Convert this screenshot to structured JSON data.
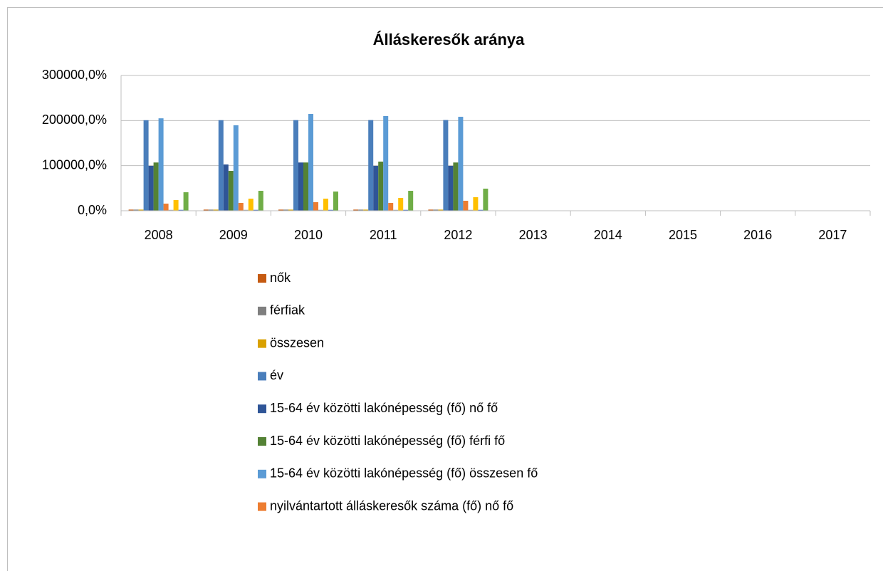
{
  "chart_data": {
    "type": "bar",
    "title": "Álláskeresők aránya",
    "categories": [
      "2008",
      "2009",
      "2010",
      "2011",
      "2012",
      "2013",
      "2014",
      "2015",
      "2016",
      "2017"
    ],
    "ylim": [
      0,
      300000
    ],
    "yticks": [
      {
        "value": 0,
        "label": "0,0%"
      },
      {
        "value": 100000,
        "label": "100000,0%"
      },
      {
        "value": 200000,
        "label": "200000,0%"
      },
      {
        "value": 300000,
        "label": "300000,0%"
      }
    ],
    "grid": true,
    "legend": "bottom",
    "series": [
      {
        "name": "nők",
        "color": "#c55a11",
        "values": [
          2500,
          2500,
          2500,
          2500,
          2500,
          null,
          null,
          null,
          null,
          null
        ]
      },
      {
        "name": "férfiak",
        "color": "#7f7f7f",
        "values": [
          2500,
          2500,
          2500,
          2500,
          2500,
          null,
          null,
          null,
          null,
          null
        ]
      },
      {
        "name": "összesen",
        "color": "#d9a100",
        "values": [
          2500,
          2500,
          2500,
          2500,
          2500,
          null,
          null,
          null,
          null,
          null
        ]
      },
      {
        "name": "év",
        "color": "#4a7ebb",
        "values": [
          200800,
          200900,
          201000,
          201100,
          201200,
          null,
          null,
          null,
          null,
          null
        ]
      },
      {
        "name": "15-64 év közötti lakónépesség (fő) nő fő",
        "color": "#2f5597",
        "values": [
          99500,
          102600,
          107000,
          99500,
          99500,
          null,
          null,
          null,
          null,
          null
        ]
      },
      {
        "name": "15-64 év közötti lakónépesség (fő) férfi fő",
        "color": "#548235",
        "values": [
          107000,
          88400,
          107000,
          109000,
          107000,
          null,
          null,
          null,
          null,
          null
        ]
      },
      {
        "name": "15-64 év közötti lakónépesség (fő) összesen fő",
        "color": "#5b9bd5",
        "values": [
          205000,
          189500,
          214700,
          210000,
          208400,
          null,
          null,
          null,
          null,
          null
        ]
      },
      {
        "name": "nyilvántartott álláskeresők száma (fő) nő fő",
        "color": "#ed7d31",
        "values": [
          15800,
          17400,
          19000,
          17400,
          22100,
          null,
          null,
          null,
          null,
          null
        ]
      },
      {
        "color": "#a5a5a5",
        "values": [
          2000,
          2000,
          2000,
          2000,
          2000,
          null,
          null,
          null,
          null,
          null
        ]
      },
      {
        "color": "#ffc000",
        "values": [
          23700,
          26800,
          26800,
          28400,
          30000,
          null,
          null,
          null,
          null,
          null
        ]
      },
      {
        "color": "#4472c4",
        "values": [
          2000,
          2000,
          2000,
          2000,
          2000,
          null,
          null,
          null,
          null,
          null
        ]
      },
      {
        "color": "#70ad47",
        "values": [
          41000,
          44200,
          42600,
          44200,
          49000,
          null,
          null,
          null,
          null,
          null
        ]
      }
    ]
  }
}
